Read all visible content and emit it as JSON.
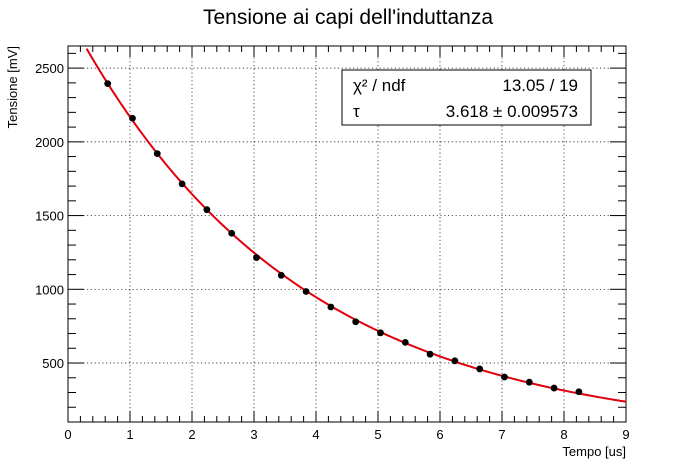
{
  "chart_data": {
    "type": "scatter",
    "title": "Tensione ai capi dell'induttanza",
    "xlabel": "Tempo [us]",
    "ylabel": "Tensione [mV]",
    "xlim": [
      0,
      9
    ],
    "ylim": [
      100,
      2650
    ],
    "x_ticks": [
      0,
      1,
      2,
      3,
      4,
      5,
      6,
      7,
      8,
      9
    ],
    "y_ticks": [
      500,
      1000,
      1500,
      2000,
      2500
    ],
    "grid": true,
    "series": [
      {
        "color": "#000000",
        "x": [
          0.64,
          1.04,
          1.44,
          1.84,
          2.24,
          2.64,
          3.04,
          3.44,
          3.84,
          4.24,
          4.64,
          5.04,
          5.44,
          5.84,
          6.24,
          6.64,
          7.04,
          7.44,
          7.84,
          8.24
        ],
        "values": [
          2395,
          2160,
          1920,
          1715,
          1540,
          1380,
          1215,
          1095,
          985,
          880,
          780,
          705,
          640,
          560,
          515,
          460,
          405,
          370,
          330,
          305
        ]
      }
    ],
    "fit": {
      "color": "#e0000d",
      "function": "exponential",
      "amplitude": 2860,
      "tau": 3.618,
      "x_range": [
        0.3,
        9
      ]
    },
    "stats_box": {
      "rows": [
        {
          "label": "χ² / ndf",
          "value": "13.05 / 19"
        },
        {
          "label": "τ",
          "value": "3.618 ± 0.009573"
        }
      ]
    }
  }
}
